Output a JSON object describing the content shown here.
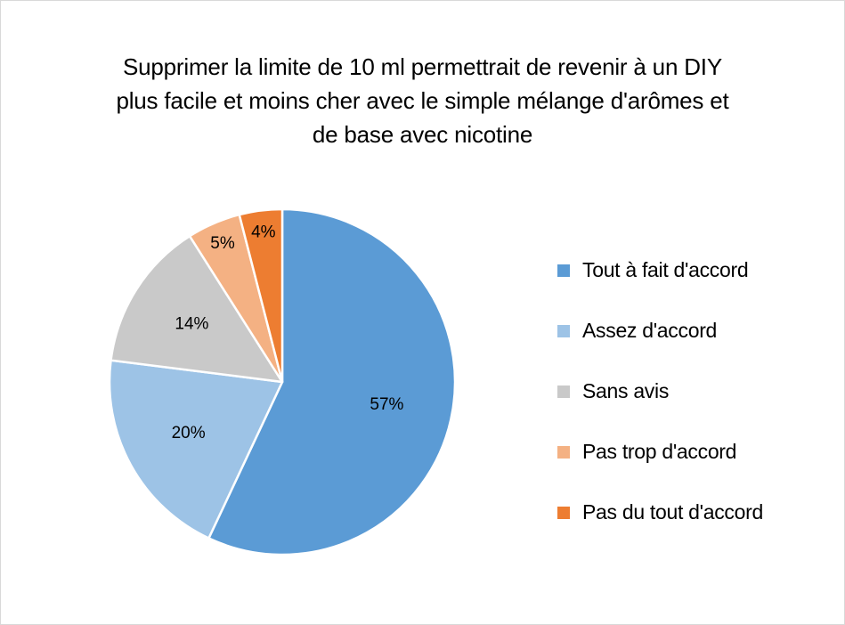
{
  "chart_data": {
    "type": "pie",
    "title_lines": [
      "Supprimer la limite de 10 ml permettrait de revenir à un DIY",
      "plus facile et moins cher avec le simple mélange d'arômes et",
      "de base avec nicotine"
    ],
    "categories": [
      "Tout à fait d'accord",
      "Assez d'accord",
      "Sans avis",
      "Pas trop d'accord",
      "Pas du tout d'accord"
    ],
    "values": [
      57,
      20,
      14,
      5,
      4
    ],
    "data_labels": [
      "57%",
      "20%",
      "14%",
      "5%",
      "4%"
    ],
    "colors": [
      "#5b9bd5",
      "#9dc3e6",
      "#c9c9c9",
      "#f4b183",
      "#ed7d31"
    ],
    "legend_position": "right"
  }
}
